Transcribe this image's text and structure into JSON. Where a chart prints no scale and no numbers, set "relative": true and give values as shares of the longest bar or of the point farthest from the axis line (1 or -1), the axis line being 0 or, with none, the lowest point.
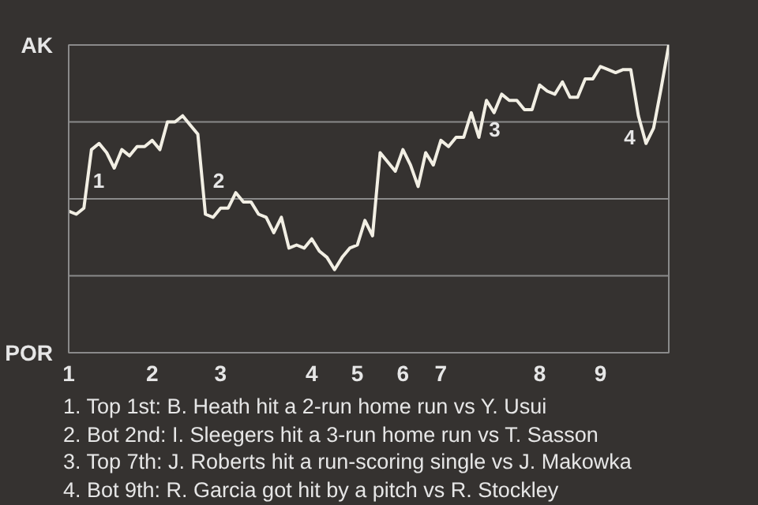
{
  "chart_data": {
    "type": "line",
    "relative": true,
    "categories": [
      "1",
      null,
      null,
      null,
      null,
      null,
      null,
      null,
      null,
      null,
      null,
      "2",
      null,
      null,
      null,
      null,
      null,
      null,
      null,
      null,
      "3",
      null,
      null,
      null,
      null,
      null,
      null,
      null,
      null,
      null,
      null,
      null,
      "4",
      null,
      null,
      null,
      null,
      null,
      "5",
      null,
      null,
      null,
      null,
      null,
      "6",
      null,
      null,
      null,
      null,
      "7",
      null,
      null,
      null,
      null,
      null,
      null,
      null,
      null,
      null,
      null,
      null,
      null,
      "8",
      null,
      null,
      null,
      null,
      null,
      null,
      null,
      "9",
      null,
      null,
      null,
      null,
      null,
      null,
      null,
      null,
      null
    ],
    "series": [
      {
        "color": "#f2efe4",
        "values": [
          0.46,
          0.45,
          0.47,
          0.66,
          0.68,
          0.65,
          0.6,
          0.66,
          0.64,
          0.67,
          0.67,
          0.69,
          0.66,
          0.75,
          0.75,
          0.77,
          0.74,
          0.71,
          0.45,
          0.44,
          0.47,
          0.47,
          0.52,
          0.49,
          0.49,
          0.45,
          0.44,
          0.39,
          0.44,
          0.34,
          0.35,
          0.34,
          0.37,
          0.33,
          0.31,
          0.27,
          0.31,
          0.34,
          0.35,
          0.43,
          0.38,
          0.65,
          0.62,
          0.59,
          0.66,
          0.61,
          0.54,
          0.65,
          0.61,
          0.69,
          0.67,
          0.7,
          0.7,
          0.78,
          0.7,
          0.82,
          0.78,
          0.84,
          0.82,
          0.82,
          0.79,
          0.79,
          0.87,
          0.85,
          0.84,
          0.88,
          0.83,
          0.83,
          0.89,
          0.89,
          0.93,
          0.92,
          0.91,
          0.92,
          0.92,
          0.77,
          0.68,
          0.73,
          0.86,
          1.0
        ]
      }
    ],
    "ref_lines": [
      {
        "axis": "y",
        "value": 0.25,
        "color": "#8a8a8a"
      },
      {
        "axis": "y",
        "value": 0.5,
        "color": "#8a8a8a"
      },
      {
        "axis": "y",
        "value": 0.75,
        "color": "#8a8a8a"
      }
    ],
    "annotations": [
      "AK",
      "POR",
      "1",
      "2",
      "3",
      "4",
      "1. Top 1st: B. Heath hit a 2-run home run vs Y. Usui",
      "2. Bot 2nd: I. Sleegers hit a 3-run home run vs T. Sasson",
      "3. Top 7th: J. Roberts hit a run-scoring single vs J. Makowka",
      "4. Bot 9th: R. Garcia got hit by a pitch vs R. Stockley"
    ]
  }
}
